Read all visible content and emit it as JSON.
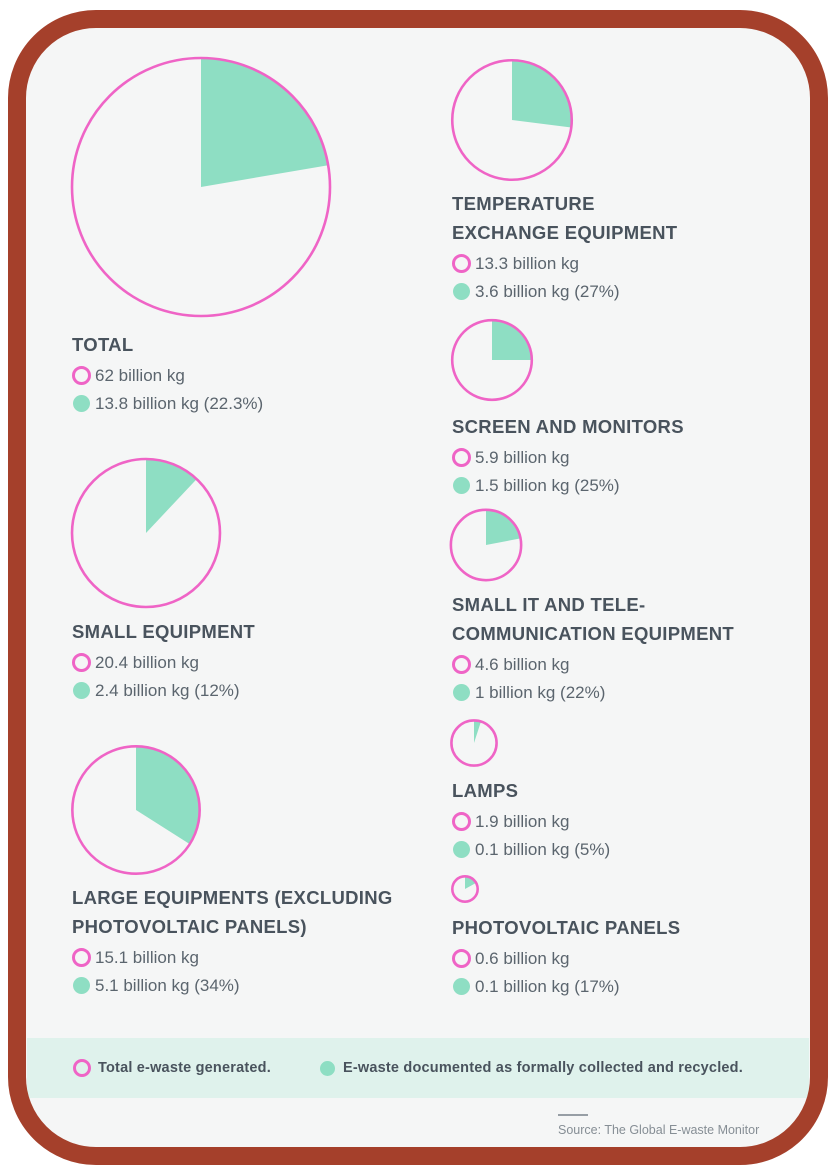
{
  "colors": {
    "frame": "#A5402B",
    "sheet_bg": "#F5F6F6",
    "generated_outline": "#EF64C6",
    "recycled_fill": "#8EDEC3",
    "legend_bar_bg": "#DFF2EC",
    "heading_text": "#49535D",
    "value_text": "#5B656E"
  },
  "chart_data": {
    "type": "pie",
    "layout": "small-multiples, slice starts at 12 o'clock clockwise, radius scales with sqrt of total",
    "radius_scale": {
      "max_radius_px": 129,
      "max_value": 62
    },
    "units": "billion kg",
    "categories": [
      {
        "name": "TOTAL",
        "total_billion_kg": 62,
        "recycled_billion_kg": 13.8,
        "recycled_pct": 22.3,
        "total_label": "62 billion kg",
        "recycled_label": "13.8 billion kg (22.3%)"
      },
      {
        "name": "TEMPERATURE\nEXCHANGE EQUIPMENT",
        "total_billion_kg": 13.3,
        "recycled_billion_kg": 3.6,
        "recycled_pct": 27,
        "total_label": "13.3 billion kg",
        "recycled_label": "3.6 billion kg (27%)"
      },
      {
        "name": "SCREEN AND MONITORS",
        "total_billion_kg": 5.9,
        "recycled_billion_kg": 1.5,
        "recycled_pct": 25,
        "total_label": "5.9 billion kg",
        "recycled_label": "1.5 billion kg (25%)"
      },
      {
        "name": "SMALL EQUIPMENT",
        "total_billion_kg": 20.4,
        "recycled_billion_kg": 2.4,
        "recycled_pct": 12,
        "total_label": "20.4 billion kg",
        "recycled_label": "2.4 billion kg (12%)"
      },
      {
        "name": "SMALL IT AND TELE-\nCOMMUNICATION EQUIPMENT",
        "total_billion_kg": 4.6,
        "recycled_billion_kg": 1,
        "recycled_pct": 22,
        "total_label": "4.6 billion kg",
        "recycled_label": "1 billion kg (22%)"
      },
      {
        "name": "LAMPS",
        "total_billion_kg": 1.9,
        "recycled_billion_kg": 0.1,
        "recycled_pct": 5,
        "total_label": "1.9 billion kg",
        "recycled_label": "0.1 billion kg (5%)"
      },
      {
        "name": "LARGE EQUIPMENTS (EXCLUDING\nPHOTOVOLTAIC PANELS)",
        "total_billion_kg": 15.1,
        "recycled_billion_kg": 5.1,
        "recycled_pct": 34,
        "total_label": "15.1 billion kg",
        "recycled_label": "5.1 billion kg (34%)"
      },
      {
        "name": "PHOTOVOLTAIC PANELS",
        "total_billion_kg": 0.6,
        "recycled_billion_kg": 0.1,
        "recycled_pct": 17,
        "total_label": "0.6 billion kg",
        "recycled_label": "0.1 billion kg (17%)"
      }
    ],
    "legend": [
      {
        "marker": "outline-circle",
        "label": "Total e-waste generated."
      },
      {
        "marker": "filled-circle",
        "label": "E-waste documented as formally collected and recycled."
      }
    ],
    "legend_position": "bottom"
  },
  "footer": {
    "source": "Source: The Global E-waste Monitor"
  }
}
